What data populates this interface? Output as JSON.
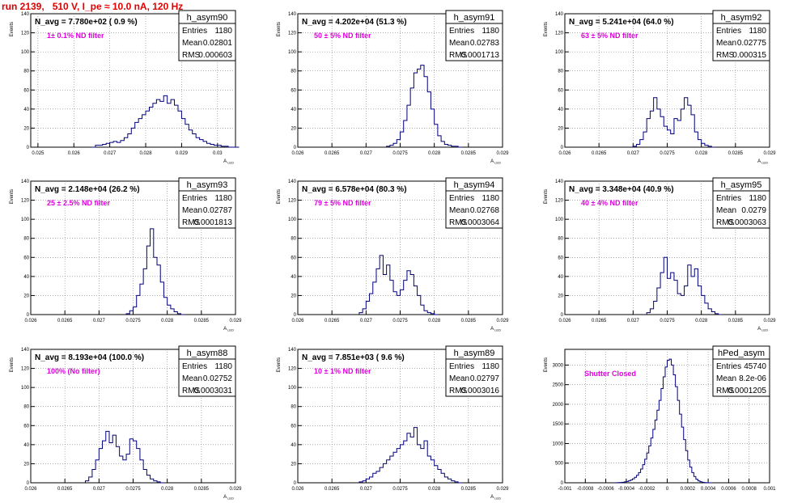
{
  "title": "run 2139,   510 V, I_pe ≈ 10.0 nA, 120 Hz",
  "axis_labels": {
    "x": "A_LED",
    "y": "Events"
  },
  "colors": {
    "line": "#00007f",
    "title": "#e00000",
    "annotation": "#e000e0",
    "grid": "#808080"
  },
  "chart_data": [
    {
      "type": "histogram",
      "stats": {
        "name": "h_asym90",
        "entries": "1180",
        "mean": "0.02801",
        "rms": "0.000603"
      },
      "label": "N_avg = 7.780e+02 ( 0.9 %)",
      "annotation": "1± 0.1% ND filter",
      "xlabel": "A_LED",
      "ylabel": "Events",
      "xlim": [
        0.0248,
        0.0305
      ],
      "ylim": [
        0,
        140
      ],
      "xticks": [
        "0.025",
        "0.026",
        "0.027",
        "0.028",
        "0.029",
        "0.03"
      ],
      "yticks": [
        "0",
        "20",
        "40",
        "60",
        "80",
        "100",
        "120",
        "140"
      ],
      "bins": {
        "start": 0.0265,
        "width": 0.0001,
        "counts": [
          0,
          2,
          2,
          3,
          4,
          5,
          6,
          5,
          7,
          10,
          14,
          20,
          26,
          30,
          34,
          38,
          42,
          46,
          50,
          48,
          54,
          46,
          50,
          44,
          38,
          30,
          24,
          18,
          14,
          10,
          8,
          6,
          4,
          3,
          2,
          2,
          1,
          1,
          0,
          0,
          0
        ]
      }
    },
    {
      "type": "histogram",
      "stats": {
        "name": "h_asym91",
        "entries": "1180",
        "mean": "0.02783",
        "rms": "0.0001713"
      },
      "label": "N_avg = 4.202e+04 (51.3 %)",
      "annotation": "50 ± 5% ND filter",
      "xlabel": "A_LED",
      "ylabel": "Events",
      "xlim": [
        0.026,
        0.029
      ],
      "ylim": [
        0,
        140
      ],
      "xticks": [
        "0.026",
        "0.0265",
        "0.027",
        "0.0275",
        "0.028",
        "0.0285",
        "0.029"
      ],
      "yticks": [
        "0",
        "20",
        "40",
        "60",
        "80",
        "100",
        "120",
        "140"
      ],
      "bins": {
        "start": 0.0273,
        "width": 5e-05,
        "counts": [
          1,
          2,
          4,
          8,
          16,
          28,
          44,
          62,
          78,
          82,
          86,
          74,
          58,
          40,
          24,
          12,
          6,
          3,
          2,
          1,
          1,
          0
        ]
      }
    },
    {
      "type": "histogram",
      "stats": {
        "name": "h_asym92",
        "entries": "1180",
        "mean": "0.02775",
        "rms": "0.000315"
      },
      "label": "N_avg = 5.241e+04 (64.0 %)",
      "annotation": "63 ± 5% ND filter",
      "xlabel": "A_LED",
      "ylabel": "Events",
      "xlim": [
        0.026,
        0.029
      ],
      "ylim": [
        0,
        140
      ],
      "xticks": [
        "0.026",
        "0.0265",
        "0.027",
        "0.0275",
        "0.028",
        "0.0285",
        "0.029"
      ],
      "yticks": [
        "0",
        "20",
        "40",
        "60",
        "80",
        "100",
        "120",
        "140"
      ],
      "bins": {
        "start": 0.027,
        "width": 5e-05,
        "counts": [
          1,
          3,
          8,
          16,
          30,
          38,
          52,
          40,
          32,
          22,
          18,
          14,
          30,
          28,
          40,
          52,
          44,
          34,
          16,
          8,
          4,
          2,
          1,
          0
        ]
      }
    },
    {
      "type": "histogram",
      "stats": {
        "name": "h_asym93",
        "entries": "1180",
        "mean": "0.02787",
        "rms": "0.0001813"
      },
      "label": "N_avg = 2.148e+04 (26.2 %)",
      "annotation": "25 ± 2.5% ND filter",
      "xlabel": "A_LED",
      "ylabel": "Events",
      "xlim": [
        0.026,
        0.029
      ],
      "ylim": [
        0,
        140
      ],
      "xticks": [
        "0.026",
        "0.0265",
        "0.027",
        "0.0275",
        "0.028",
        "0.0285",
        "0.029"
      ],
      "yticks": [
        "0",
        "20",
        "40",
        "60",
        "80",
        "100",
        "120",
        "140"
      ],
      "bins": {
        "start": 0.0274,
        "width": 5e-05,
        "counts": [
          1,
          4,
          8,
          20,
          32,
          48,
          72,
          90,
          60,
          52,
          34,
          18,
          10,
          6,
          3,
          1,
          0
        ]
      }
    },
    {
      "type": "histogram",
      "stats": {
        "name": "h_asym94",
        "entries": "1180",
        "mean": "0.02768",
        "rms": "0.0003064"
      },
      "label": "N_avg = 6.578e+04 (80.3 %)",
      "annotation": "79 ± 5% ND filter",
      "xlabel": "A_LED",
      "ylabel": "Events",
      "xlim": [
        0.026,
        0.029
      ],
      "ylim": [
        0,
        140
      ],
      "xticks": [
        "0.026",
        "0.0265",
        "0.027",
        "0.0275",
        "0.028",
        "0.0285",
        "0.029"
      ],
      "yticks": [
        "0",
        "20",
        "40",
        "60",
        "80",
        "100",
        "120",
        "140"
      ],
      "bins": {
        "start": 0.0269,
        "width": 5e-05,
        "counts": [
          2,
          6,
          14,
          22,
          34,
          48,
          62,
          42,
          52,
          36,
          24,
          20,
          26,
          36,
          46,
          42,
          30,
          20,
          10,
          4,
          2,
          1,
          0
        ]
      }
    },
    {
      "type": "histogram",
      "stats": {
        "name": "h_asym95",
        "entries": "1180",
        "mean": "0.0279",
        "rms": "0.0003063"
      },
      "label": "N_avg = 3.348e+04 (40.9 %)",
      "annotation": "40 ± 4% ND filter",
      "xlabel": "A_LED",
      "ylabel": "Events",
      "xlim": [
        0.026,
        0.029
      ],
      "ylim": [
        0,
        140
      ],
      "xticks": [
        "0.026",
        "0.0265",
        "0.027",
        "0.0275",
        "0.028",
        "0.0285",
        "0.029"
      ],
      "yticks": [
        "0",
        "20",
        "40",
        "60",
        "80",
        "100",
        "120",
        "140"
      ],
      "bins": {
        "start": 0.0272,
        "width": 5e-05,
        "counts": [
          2,
          6,
          14,
          28,
          44,
          60,
          38,
          44,
          36,
          22,
          20,
          30,
          52,
          40,
          48,
          30,
          20,
          12,
          6,
          3,
          1,
          0
        ]
      }
    },
    {
      "type": "histogram",
      "stats": {
        "name": "h_asym88",
        "entries": "1180",
        "mean": "0.02752",
        "rms": "0.0003031"
      },
      "label": "N_avg = 8.193e+04 (100.0 %)",
      "annotation": "100% (No filter)",
      "xlabel": "A_LED",
      "ylabel": "Events",
      "xlim": [
        0.026,
        0.029
      ],
      "ylim": [
        0,
        140
      ],
      "xticks": [
        "0.026",
        "0.0265",
        "0.027",
        "0.0275",
        "0.028",
        "0.0285",
        "0.029"
      ],
      "yticks": [
        "0",
        "20",
        "40",
        "60",
        "80",
        "100",
        "120",
        "140"
      ],
      "bins": {
        "start": 0.0268,
        "width": 5e-05,
        "counts": [
          2,
          6,
          14,
          24,
          36,
          44,
          54,
          42,
          50,
          38,
          28,
          24,
          30,
          46,
          44,
          36,
          24,
          14,
          8,
          4,
          2,
          1,
          0
        ]
      }
    },
    {
      "type": "histogram",
      "stats": {
        "name": "h_asym89",
        "entries": "1180",
        "mean": "0.02797",
        "rms": "0.0003016"
      },
      "label": "N_avg = 7.851e+03 ( 9.6 %)",
      "annotation": "10 ± 1% ND filter",
      "xlabel": "A_LED",
      "ylabel": "Events",
      "xlim": [
        0.026,
        0.029
      ],
      "ylim": [
        0,
        140
      ],
      "xticks": [
        "0.026",
        "0.0265",
        "0.027",
        "0.0275",
        "0.028",
        "0.0285",
        "0.029"
      ],
      "yticks": [
        "0",
        "20",
        "40",
        "60",
        "80",
        "100",
        "120",
        "140"
      ],
      "bins": {
        "start": 0.0269,
        "width": 5e-05,
        "counts": [
          1,
          2,
          4,
          6,
          10,
          12,
          16,
          20,
          24,
          28,
          32,
          36,
          40,
          44,
          52,
          48,
          58,
          40,
          36,
          44,
          28,
          24,
          18,
          14,
          10,
          6,
          4,
          2,
          1,
          0
        ]
      }
    },
    {
      "type": "histogram",
      "stats": {
        "name": "hPed_asym",
        "entries": "45740",
        "mean": "8.2e-06",
        "rms": "0.0001205"
      },
      "label": "",
      "annotation": "Shutter Closed",
      "xlabel": "",
      "ylabel": "Events",
      "xlim": [
        -0.001,
        0.001
      ],
      "ylim": [
        0,
        3400
      ],
      "xticks": [
        "-0.001",
        "-0.0008",
        "-0.0006",
        "-0.0004",
        "-0.0002",
        "0",
        "0.0002",
        "0.0004",
        "0.0006",
        "0.0008",
        "0.001"
      ],
      "yticks": [
        "0",
        "500",
        "1000",
        "1500",
        "2000",
        "2500",
        "3000"
      ],
      "bins": {
        "start": -0.0005,
        "width": 2e-05,
        "counts": [
          2,
          4,
          8,
          14,
          22,
          34,
          50,
          72,
          100,
          140,
          190,
          260,
          350,
          460,
          600,
          760,
          940,
          1140,
          1360,
          1600,
          1850,
          2100,
          2400,
          2700,
          2950,
          3120,
          3150,
          3000,
          2750,
          2450,
          2100,
          1750,
          1420,
          1100,
          820,
          580,
          400,
          260,
          160,
          90,
          50,
          26,
          12,
          6,
          2,
          1,
          0
        ]
      }
    }
  ]
}
